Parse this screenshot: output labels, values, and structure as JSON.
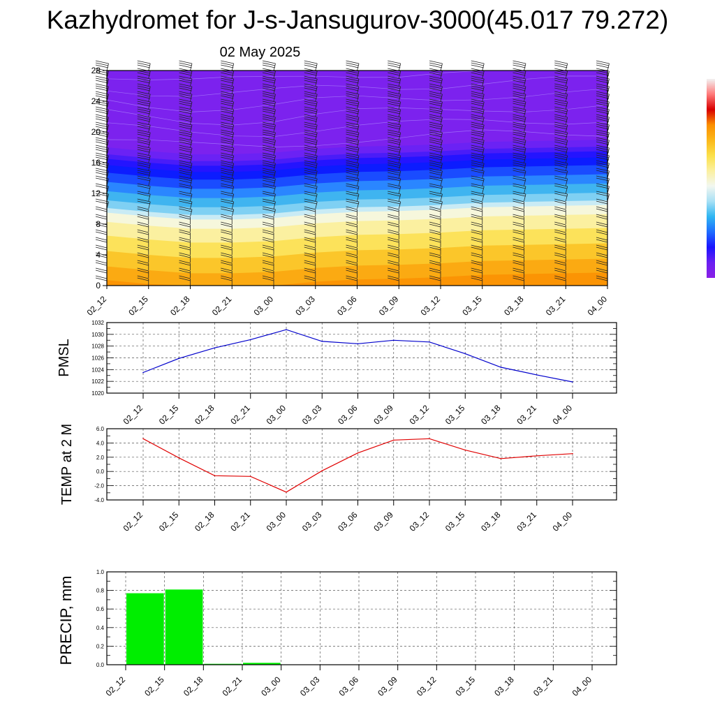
{
  "header": {
    "title": "Kazhydromet for J-s-Jansugurov-3000(45.017 79.272)",
    "subtitle": "02 May 2025"
  },
  "time_labels": [
    "02_12",
    "02_15",
    "02_18",
    "02_21",
    "03_00",
    "03_03",
    "03_06",
    "03_09",
    "03_12",
    "03_15",
    "03_18",
    "03_21",
    "04_00"
  ],
  "chart_data": [
    {
      "type": "heatmap",
      "title": "",
      "xlabel": "",
      "ylabel": "",
      "categories": [
        "02_12",
        "02_15",
        "02_18",
        "02_21",
        "03_00",
        "03_03",
        "03_06",
        "03_09",
        "03_12",
        "03_15",
        "03_18",
        "03_21",
        "04_00"
      ],
      "y_ticks": [
        "0",
        "4",
        "8",
        "12",
        "16",
        "20",
        "24",
        "28"
      ],
      "ylim": [
        0,
        28
      ],
      "colorbar": [
        "#8a1fe6",
        "#6a1ff2",
        "#1a14ff",
        "#1e6cff",
        "#2fb6f2",
        "#a8e0f5",
        "#f2f7f0",
        "#fbf0a0",
        "#fbe04a",
        "#fbb81a",
        "#fb8f00",
        "#d80000",
        "#ff7a7a",
        "#f2f2f2"
      ],
      "series": [
        {
          "values": [
            9.5,
            9.0,
            8.6,
            8.6,
            8.8,
            9.3,
            9.6,
            9.7,
            9.9,
            10.2,
            10.3,
            10.4,
            10.5
          ]
        }
      ],
      "grid": false,
      "legend": "colorbar right"
    },
    {
      "type": "line",
      "title": "",
      "xlabel": "",
      "ylabel": "PMSL",
      "categories": [
        "02_12",
        "02_15",
        "02_18",
        "02_21",
        "03_00",
        "03_03",
        "03_06",
        "03_09",
        "03_12",
        "03_15",
        "03_18",
        "03_21",
        "04_00"
      ],
      "y_ticks": [
        "1020",
        "1022",
        "1024",
        "1026",
        "1028",
        "1030",
        "1032"
      ],
      "ylim": [
        1020,
        1032
      ],
      "series": [
        {
          "color": "#0000cc",
          "values": [
            1023.5,
            1025.9,
            1027.7,
            1029.1,
            1030.8,
            1028.8,
            1028.4,
            1029.0,
            1028.7,
            1026.7,
            1024.4,
            1023.1,
            1021.9
          ]
        }
      ],
      "grid": true,
      "legend": "none"
    },
    {
      "type": "line",
      "title": "",
      "xlabel": "",
      "ylabel": "TEMP at 2 M",
      "categories": [
        "02_12",
        "02_15",
        "02_18",
        "02_21",
        "03_00",
        "03_03",
        "03_06",
        "03_09",
        "03_12",
        "03_15",
        "03_18",
        "03_21",
        "04_00"
      ],
      "y_ticks": [
        "-4.0",
        "-2.0",
        "0.0",
        "2.0",
        "4.0",
        "6.0"
      ],
      "ylim": [
        -4,
        6
      ],
      "series": [
        {
          "color": "#e00000",
          "values": [
            4.6,
            1.9,
            -0.6,
            -0.7,
            -2.9,
            0.1,
            2.6,
            4.4,
            4.6,
            3.0,
            1.8,
            2.2,
            2.5
          ]
        }
      ],
      "grid": true,
      "legend": "none"
    },
    {
      "type": "bar",
      "title": "",
      "xlabel": "",
      "ylabel": "PRECIP, mm",
      "categories": [
        "02_12",
        "02_15",
        "02_18",
        "02_21",
        "03_00",
        "03_03",
        "03_06",
        "03_09",
        "03_12",
        "03_15",
        "03_18",
        "03_21",
        "04_00"
      ],
      "y_ticks": [
        "0.0",
        "0.2",
        "0.4",
        "0.6",
        "0.8",
        "1.0"
      ],
      "ylim": [
        0,
        1
      ],
      "series": [
        {
          "color": "#00ee00",
          "values": [
            0,
            0.77,
            0.81,
            0.01,
            0.02,
            0,
            0,
            0,
            0,
            0,
            0,
            0,
            0
          ]
        }
      ],
      "grid": true,
      "legend": "none"
    }
  ]
}
